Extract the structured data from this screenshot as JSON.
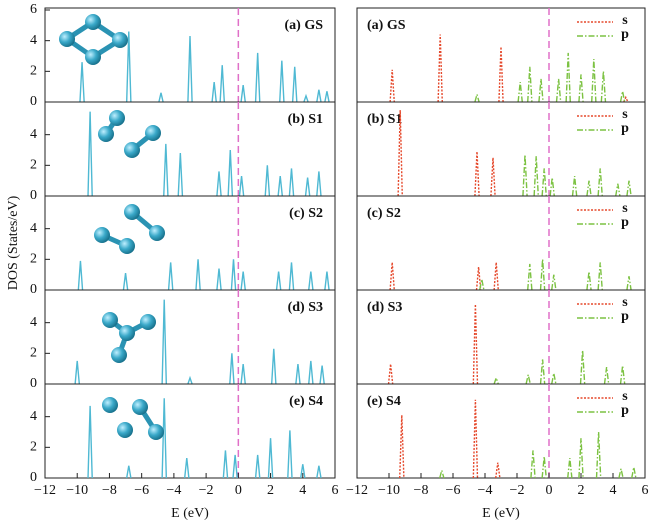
{
  "chart_data": [
    {
      "type": "spike",
      "annotation": "(a) GS",
      "xlim": [
        -12,
        6
      ],
      "ylim": [
        0,
        6
      ],
      "yticks": [
        0,
        2,
        4,
        6
      ],
      "vline": 0,
      "color": "#4fb9d3",
      "x": [
        -9.7,
        -6.8,
        -4.8,
        -3,
        -1.5,
        -1,
        0.3,
        1.2,
        2.7,
        3.5,
        4.2,
        5,
        5.5
      ],
      "values": [
        2.6,
        4.6,
        0.6,
        4.3,
        1.3,
        2.4,
        1.1,
        3.2,
        2.7,
        2.3,
        0.4,
        0.8,
        0.7
      ]
    },
    {
      "type": "spike",
      "annotation": "(b) S1",
      "xlim": [
        -12,
        6
      ],
      "ylim": [
        0,
        6
      ],
      "yticks": [
        0,
        2,
        4
      ],
      "vline": 0,
      "color": "#4fb9d3",
      "x": [
        -9.2,
        -4.5,
        -3.6,
        -1.2,
        -0.5,
        0.2,
        1.8,
        2.6,
        3.3,
        4.3,
        5
      ],
      "values": [
        5.5,
        3.4,
        2.8,
        1.6,
        3.0,
        1.3,
        2.0,
        1.3,
        1.8,
        1.2,
        1.6
      ]
    },
    {
      "type": "spike",
      "annotation": "(c) S2",
      "xlim": [
        -12,
        6
      ],
      "ylim": [
        0,
        6
      ],
      "yticks": [
        0,
        2,
        4
      ],
      "vline": 0,
      "color": "#4fb9d3",
      "ylabel": "DOS (States/eV)",
      "x": [
        -9.8,
        -7,
        -4.2,
        -2.5,
        -1.2,
        -0.3,
        0.3,
        2.5,
        3.3,
        4.5,
        5.5
      ],
      "values": [
        1.9,
        1.1,
        1.8,
        2.0,
        1.4,
        2.0,
        1.2,
        1.2,
        1.8,
        1.2,
        1.2
      ]
    },
    {
      "type": "spike",
      "annotation": "(d) S3",
      "xlim": [
        -12,
        6
      ],
      "ylim": [
        0,
        6
      ],
      "yticks": [
        0,
        2,
        4
      ],
      "vline": 0,
      "color": "#4fb9d3",
      "x": [
        -10,
        -4.6,
        -3,
        -0.4,
        0.3,
        2.2,
        3.7,
        4.5,
        5.2
      ],
      "values": [
        1.5,
        5.5,
        0.4,
        2.0,
        1.3,
        2.3,
        1.3,
        1.5,
        1.2
      ]
    },
    {
      "type": "spike",
      "annotation": "(e) S4",
      "xlim": [
        -12,
        6
      ],
      "ylim": [
        0,
        6
      ],
      "yticks": [
        0,
        2,
        4
      ],
      "vline": 0,
      "color": "#4fb9d3",
      "xlabel": "E (eV)",
      "xticks": [
        {
          "value": -12,
          "label": "−12"
        },
        {
          "value": -10,
          "label": "−10"
        },
        {
          "value": -8,
          "label": "−8"
        },
        {
          "value": -6,
          "label": "−6"
        },
        {
          "value": -4,
          "label": "−4"
        },
        {
          "value": -2,
          "label": "−2"
        },
        0,
        2,
        4,
        6
      ],
      "x": [
        -9.2,
        -6.8,
        -4.6,
        -3.2,
        -0.8,
        -0.2,
        1.2,
        2,
        3.2,
        4,
        5
      ],
      "values": [
        4.7,
        0.8,
        5.2,
        1.3,
        1.8,
        1.5,
        1.5,
        2.6,
        3.1,
        0.9,
        0.8
      ]
    },
    {
      "type": "spike",
      "annotation": "(a) GS",
      "xlim": [
        -12,
        6
      ],
      "ylim": [
        0,
        6
      ],
      "vline": 0,
      "legend": "upper right",
      "series": [
        {
          "name": "s",
          "color": "#e5482b",
          "linestyle": "dotted",
          "x": [
            -9.8,
            -6.8,
            -3,
            4.8
          ],
          "values": [
            2.1,
            4.4,
            3.6,
            0.3
          ]
        },
        {
          "name": "p",
          "color": "#7cc242",
          "linestyle": "dashdot",
          "x": [
            -4.5,
            -1.8,
            -1.2,
            -0.5,
            0.6,
            1.2,
            2,
            2.8,
            3.4,
            4.6
          ],
          "values": [
            0.5,
            1.3,
            2.3,
            1.5,
            1.5,
            3.2,
            1.8,
            2.8,
            2.0,
            0.7
          ]
        }
      ]
    },
    {
      "type": "spike",
      "annotation": "(b) S1",
      "xlim": [
        -12,
        6
      ],
      "ylim": [
        0,
        6
      ],
      "vline": 0,
      "legend": "upper right",
      "series": [
        {
          "name": "s",
          "color": "#e5482b",
          "linestyle": "dotted",
          "x": [
            -9.3,
            -4.5,
            -3.5
          ],
          "values": [
            5.6,
            2.9,
            2.5
          ]
        },
        {
          "name": "p",
          "color": "#7cc242",
          "linestyle": "dashdot",
          "x": [
            -1.5,
            -0.8,
            -0.3,
            0.2,
            1.6,
            2.5,
            3.2,
            4.3,
            5
          ],
          "values": [
            2.7,
            2.6,
            1.8,
            1.2,
            1.3,
            1.0,
            1.8,
            0.8,
            1.0
          ]
        }
      ]
    },
    {
      "type": "spike",
      "annotation": "(c) S2",
      "xlim": [
        -12,
        6
      ],
      "ylim": [
        0,
        6
      ],
      "vline": 0,
      "legend": "upper right",
      "series": [
        {
          "name": "s",
          "color": "#e5482b",
          "linestyle": "dotted",
          "x": [
            -9.8,
            -4.4,
            -3.3
          ],
          "values": [
            1.8,
            1.5,
            1.8
          ]
        },
        {
          "name": "p",
          "color": "#7cc242",
          "linestyle": "dashdot",
          "x": [
            -4.2,
            -1.2,
            -0.4,
            0.3,
            2.5,
            3.2,
            5
          ],
          "values": [
            0.7,
            1.7,
            2.0,
            1.0,
            1.2,
            1.8,
            0.9
          ]
        }
      ]
    },
    {
      "type": "spike",
      "annotation": "(d) S3",
      "xlim": [
        -12,
        6
      ],
      "ylim": [
        0,
        6
      ],
      "vline": 0,
      "legend": "upper right",
      "series": [
        {
          "name": "s",
          "color": "#e5482b",
          "linestyle": "dotted",
          "x": [
            -9.9,
            -4.6
          ],
          "values": [
            1.3,
            5.2
          ]
        },
        {
          "name": "p",
          "color": "#7cc242",
          "linestyle": "dashdot",
          "x": [
            -3.3,
            -1.3,
            -0.4,
            0.3,
            2.1,
            3.6,
            4.6
          ],
          "values": [
            0.4,
            0.6,
            1.6,
            0.7,
            2.2,
            1.1,
            1.2
          ]
        }
      ]
    },
    {
      "type": "spike",
      "annotation": "(e) S4",
      "xlim": [
        -12,
        6
      ],
      "ylim": [
        0,
        6
      ],
      "vline": 0,
      "legend": "upper right",
      "xlabel": "E (eV)",
      "xticks": [
        {
          "value": -12,
          "label": "−12"
        },
        {
          "value": -10,
          "label": "−10"
        },
        {
          "value": -8,
          "label": "−8"
        },
        {
          "value": -6,
          "label": "−6"
        },
        {
          "value": -4,
          "label": "−4"
        },
        {
          "value": -2,
          "label": "−2"
        },
        0,
        2,
        4,
        6
      ],
      "series": [
        {
          "name": "s",
          "color": "#e5482b",
          "linestyle": "dotted",
          "x": [
            -9.2,
            -4.6,
            -3.2
          ],
          "values": [
            4.1,
            5.1,
            1.0
          ]
        },
        {
          "name": "p",
          "color": "#7cc242",
          "linestyle": "dashdot",
          "x": [
            -6.7,
            -1,
            -0.3,
            1.3,
            2,
            3.1,
            4.5,
            5.3
          ],
          "values": [
            0.5,
            1.8,
            1.4,
            1.3,
            2.6,
            3.0,
            0.6,
            0.7
          ]
        }
      ]
    }
  ]
}
